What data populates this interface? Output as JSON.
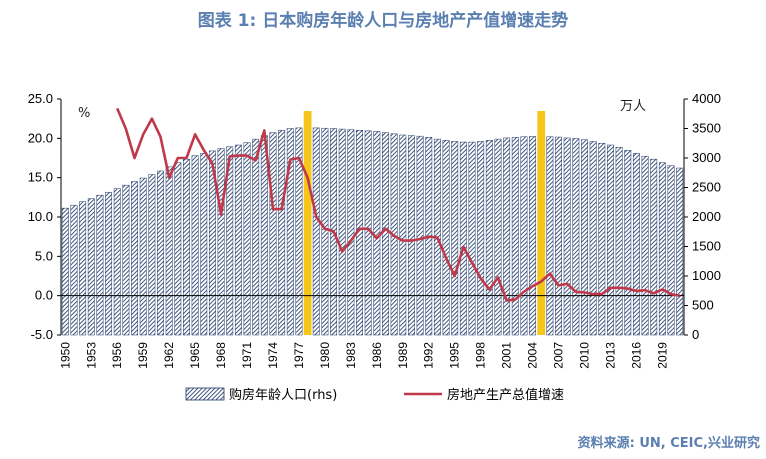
{
  "title": "图表 1:  日本购房年龄人口与房地产产值增速走势",
  "source": "资料来源: UN, CEIC,兴业研究",
  "colors": {
    "title": "#5a7fb0",
    "bar_stroke": "#1f3868",
    "line": "#c0394b",
    "highlight": "#f5c518"
  },
  "chart_data": {
    "type": "bar+line",
    "x_start": 1950,
    "x_end": 2021,
    "x_tick_labels": [
      "1950",
      "1953",
      "1956",
      "1959",
      "1962",
      "1965",
      "1968",
      "1971",
      "1974",
      "1977",
      "1980",
      "1983",
      "1986",
      "1989",
      "1992",
      "1995",
      "1998",
      "2001",
      "2004",
      "2007",
      "2010",
      "2013",
      "2016",
      "2019"
    ],
    "left_axis": {
      "unit": "%",
      "ylim": [
        -5,
        25
      ],
      "ticks": [
        "25.0",
        "20.0",
        "15.0",
        "10.0",
        "5.0",
        "0.0",
        "-5.0"
      ]
    },
    "right_axis": {
      "unit": "万人",
      "ylim": [
        0,
        4000
      ],
      "ticks": [
        "4000",
        "3500",
        "3000",
        "2500",
        "2000",
        "1500",
        "1000",
        "500",
        "0"
      ]
    },
    "highlight_years": [
      1978,
      2005
    ],
    "series": [
      {
        "name": "购房年龄人口(rhs)",
        "type": "bar",
        "axis": "right",
        "values": [
          2150,
          2200,
          2260,
          2310,
          2370,
          2420,
          2480,
          2540,
          2600,
          2660,
          2720,
          2780,
          2850,
          2920,
          2980,
          3040,
          3080,
          3120,
          3160,
          3190,
          3220,
          3260,
          3320,
          3380,
          3430,
          3470,
          3500,
          3510,
          3510,
          3510,
          3505,
          3500,
          3490,
          3480,
          3470,
          3460,
          3450,
          3430,
          3410,
          3390,
          3380,
          3370,
          3350,
          3320,
          3300,
          3280,
          3270,
          3270,
          3280,
          3300,
          3320,
          3340,
          3350,
          3360,
          3365,
          3365,
          3360,
          3355,
          3340,
          3330,
          3310,
          3280,
          3250,
          3220,
          3180,
          3130,
          3080,
          3030,
          2980,
          2920,
          2870,
          2830
        ]
      },
      {
        "name": "房地产生产总值增速",
        "type": "line",
        "axis": "left",
        "x": [
          1956,
          1957,
          1958,
          1959,
          1960,
          1961,
          1962,
          1963,
          1964,
          1965,
          1966,
          1967,
          1968,
          1969,
          1970,
          1971,
          1972,
          1973,
          1974,
          1975,
          1976,
          1977,
          1978,
          1979,
          1980,
          1981,
          1982,
          1983,
          1984,
          1985,
          1986,
          1987,
          1988,
          1989,
          1990,
          1991,
          1992,
          1993,
          1994,
          1995,
          1996,
          1997,
          1998,
          1999,
          2000,
          2001,
          2002,
          2003,
          2004,
          2005,
          2006,
          2007,
          2008,
          2009,
          2010,
          2011,
          2012,
          2013,
          2014,
          2015,
          2016,
          2017,
          2018,
          2019,
          2020,
          2021
        ],
        "values": [
          23.8,
          21.2,
          17.5,
          20.5,
          22.5,
          20.2,
          15.0,
          17.5,
          17.5,
          20.5,
          18.5,
          16.8,
          10.3,
          17.7,
          17.8,
          17.8,
          17.2,
          21.0,
          11.0,
          11.0,
          17.3,
          17.5,
          15.0,
          10.0,
          8.5,
          8.2,
          5.6,
          7.0,
          8.5,
          8.5,
          7.3,
          8.5,
          7.6,
          7.0,
          7.0,
          7.2,
          7.5,
          7.4,
          4.8,
          2.5,
          6.2,
          4.2,
          2.2,
          0.8,
          2.3,
          -0.6,
          -0.5,
          0.5,
          1.2,
          1.8,
          2.8,
          1.3,
          1.5,
          0.5,
          0.4,
          0.2,
          0.2,
          1.0,
          1.0,
          0.9,
          0.6,
          0.7,
          0.3,
          0.8,
          0.2,
          0.0
        ]
      }
    ],
    "legend": [
      "购房年龄人口(rhs)",
      "房地产生产总值增速"
    ]
  }
}
